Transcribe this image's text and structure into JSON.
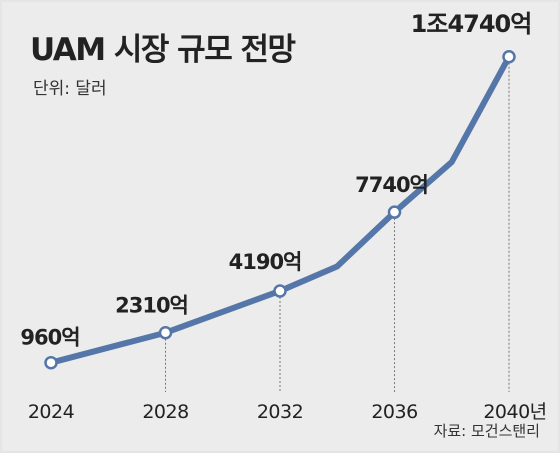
{
  "title": "UAM 시장 규모 전망",
  "unit_label": "단위: 달러",
  "source": "자료: 모건스탠리",
  "colors": {
    "line": "#5576a8",
    "point_fill": "#ffffff",
    "background": "#ececec"
  },
  "chart_data": {
    "type": "line",
    "title": "UAM 시장 규모 전망",
    "unit": "단위: 달러",
    "x": [
      2024,
      2028,
      2032,
      2034,
      2036,
      2038,
      2040
    ],
    "y": [
      960,
      2310,
      4190,
      5300,
      7740,
      10000,
      14740
    ],
    "x_ticks": [
      2024,
      2028,
      2032,
      2036,
      2040
    ],
    "x_tick_labels": [
      "2024",
      "2028",
      "2032",
      "2036",
      "2040년"
    ],
    "data_labels": [
      {
        "x": 2024,
        "y": 960,
        "text": "960억"
      },
      {
        "x": 2028,
        "y": 2310,
        "text": "2310억"
      },
      {
        "x": 2032,
        "y": 4190,
        "text": "4190억"
      },
      {
        "x": 2036,
        "y": 7740,
        "text": "7740억"
      },
      {
        "x": 2040,
        "y": 14740,
        "text": "1조4740억"
      }
    ],
    "xlim": [
      2024,
      2040
    ],
    "grid": false,
    "legend": "none"
  }
}
